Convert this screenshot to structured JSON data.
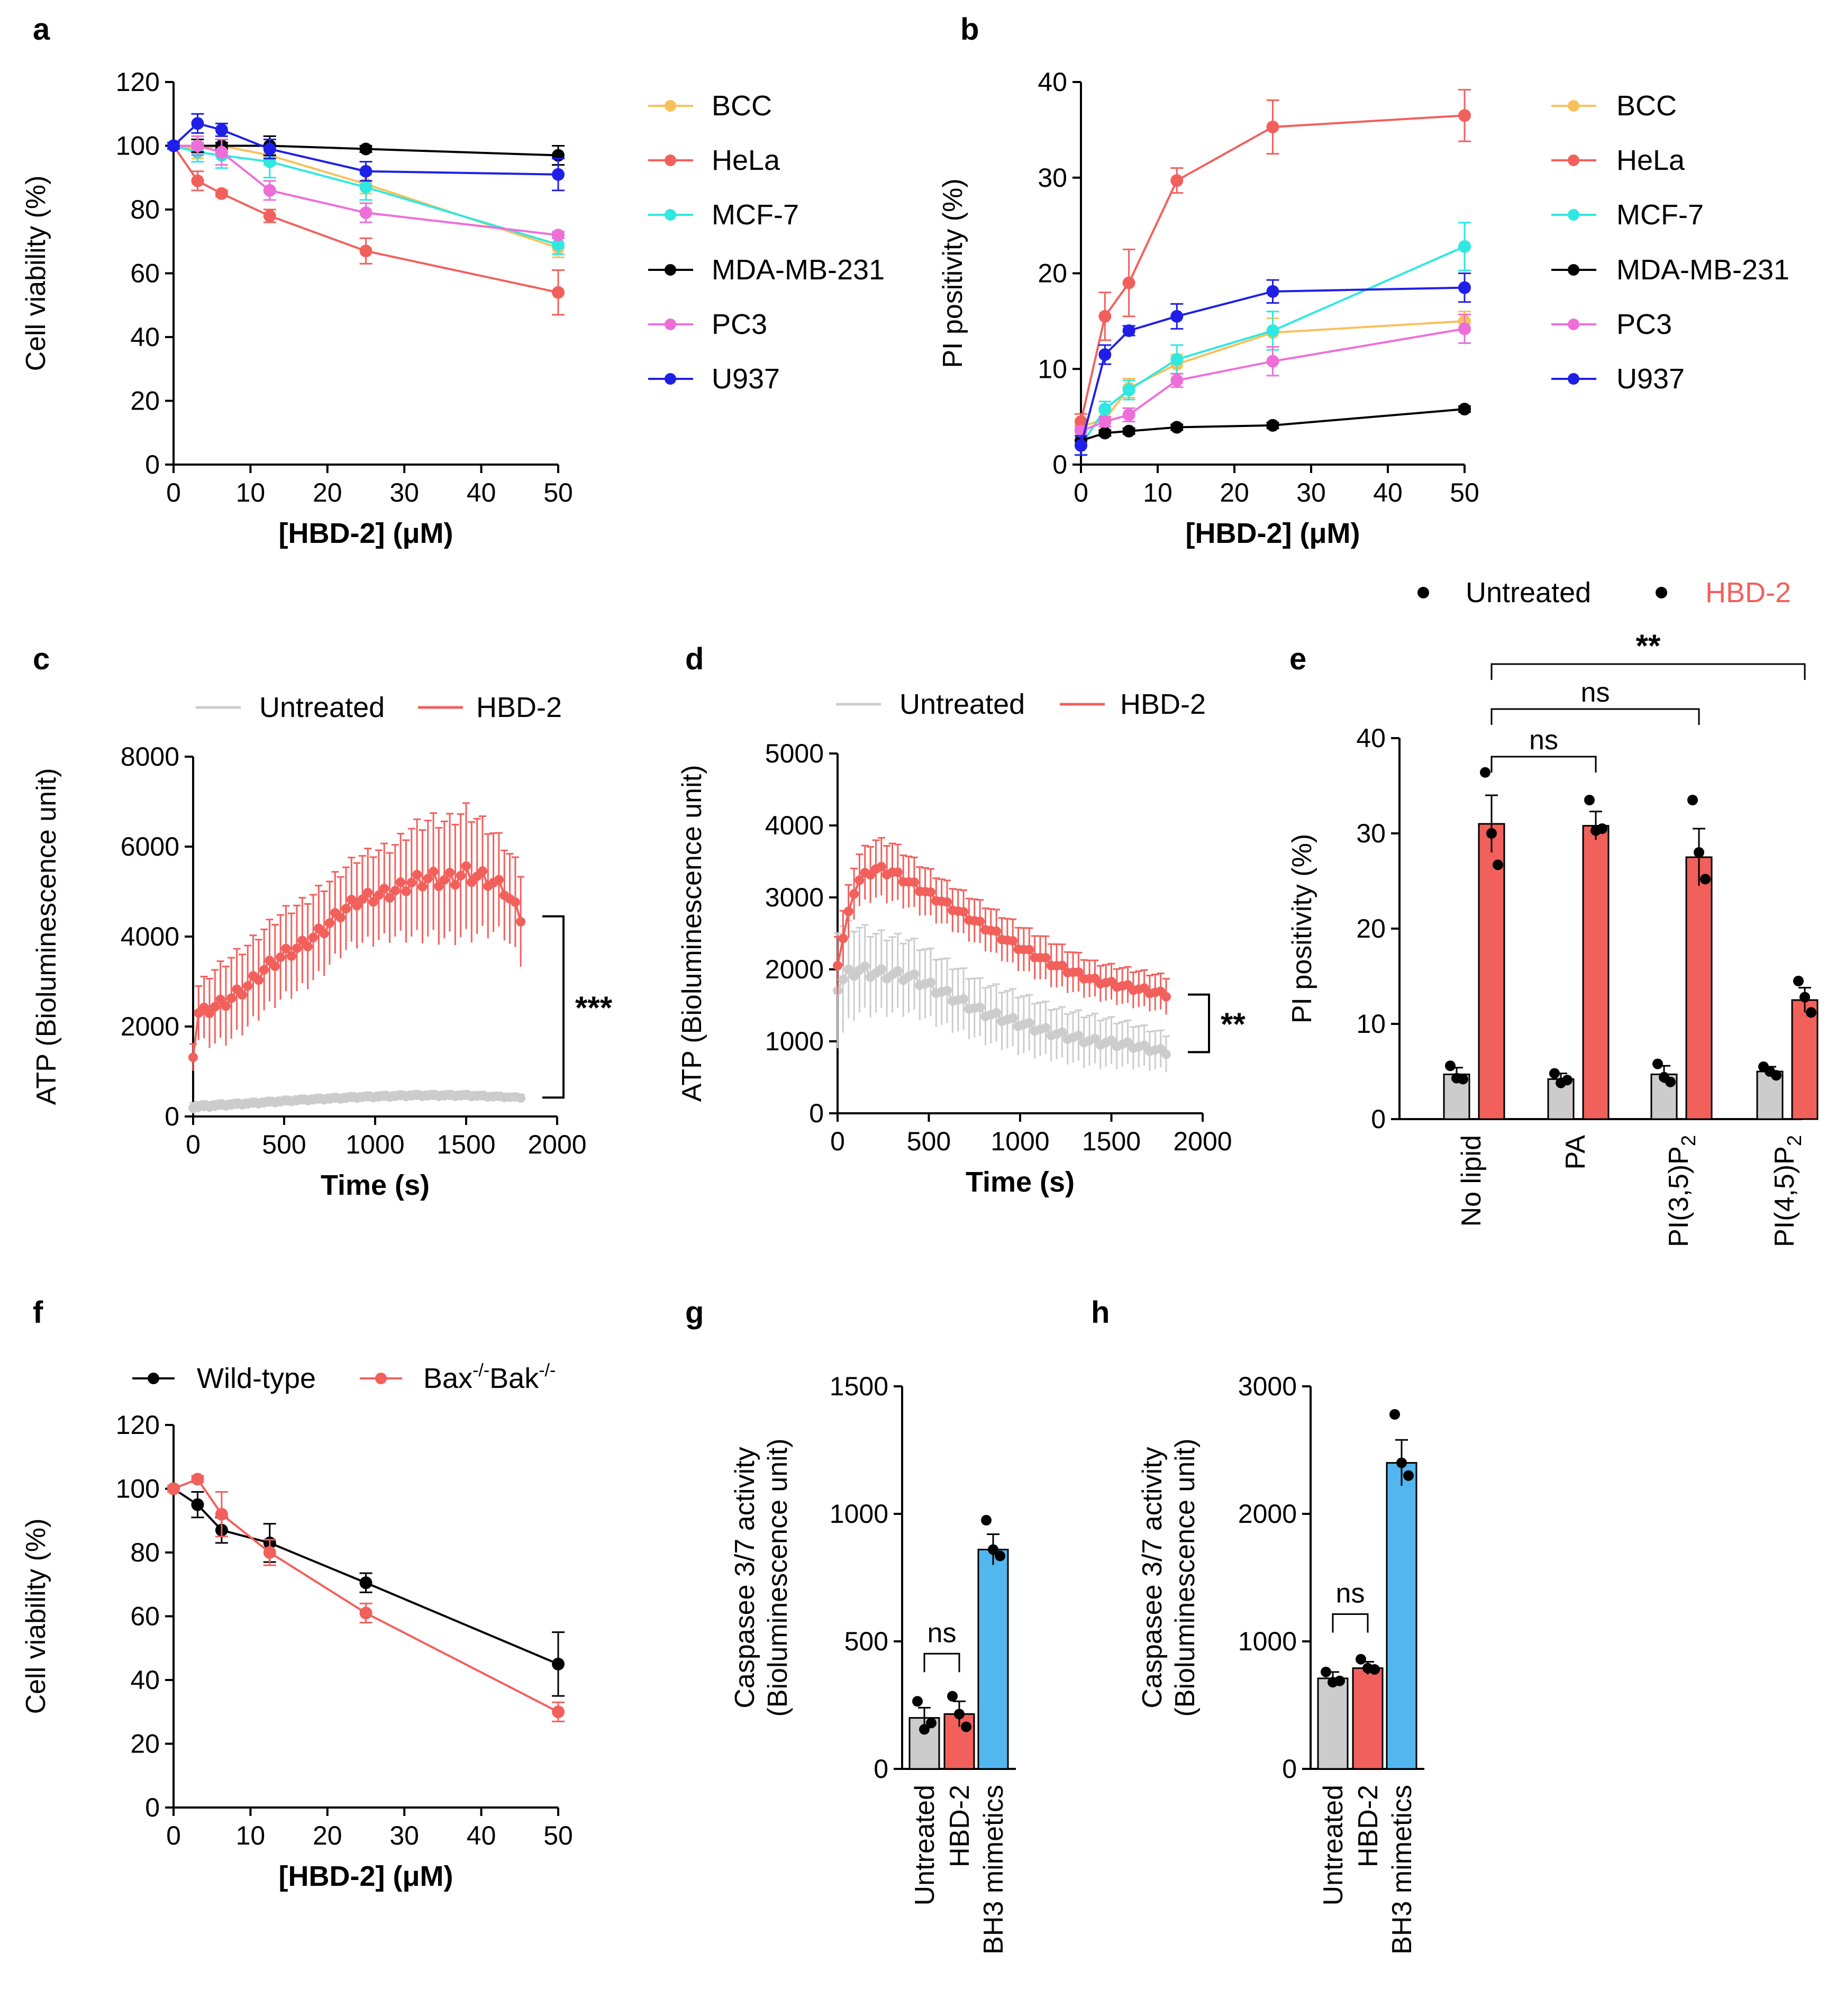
{
  "colors": {
    "BCC": "#f9c05a",
    "HeLa": "#f2605c",
    "MCF-7": "#2fe8e0",
    "MDA-MB-231": "#000000",
    "PC3": "#ee6ed8",
    "U937": "#1f1fe8",
    "untreated_grey": "#cccccc",
    "hbd_red": "#f2605c",
    "bh3_blue": "#52b7ee"
  },
  "chart_data": [
    {
      "id": "a",
      "panel_label": "a",
      "type": "line",
      "xlabel": "[HBD-2] (μM)",
      "ylabel": "Cell viability (%)",
      "xlim": [
        0,
        50
      ],
      "ylim": [
        0,
        120
      ],
      "xticks": [
        "0",
        "10",
        "20",
        "30",
        "40",
        "50"
      ],
      "yticks": [
        "0",
        "20",
        "40",
        "60",
        "80",
        "100",
        "120"
      ],
      "x": [
        0,
        3.125,
        6.25,
        12.5,
        25,
        50
      ],
      "series": [
        {
          "name": "BCC",
          "values": [
            100,
            99,
            100,
            97,
            88,
            68
          ],
          "errors": [
            1,
            3,
            2,
            3,
            3,
            3
          ]
        },
        {
          "name": "HeLa",
          "values": [
            100,
            89,
            85,
            78,
            67,
            54
          ],
          "errors": [
            1,
            3,
            1,
            2,
            4,
            7
          ]
        },
        {
          "name": "MCF-7",
          "values": [
            100,
            98,
            97,
            95,
            87,
            69
          ],
          "errors": [
            1,
            3,
            4,
            5,
            4,
            3
          ]
        },
        {
          "name": "MDA-MB-231",
          "values": [
            100,
            100,
            100,
            100,
            99,
            97
          ],
          "errors": [
            1,
            2,
            1,
            3,
            1,
            3
          ]
        },
        {
          "name": "PC3",
          "values": [
            100,
            100,
            98,
            86,
            79,
            72
          ],
          "errors": [
            1,
            3,
            4,
            3,
            3,
            1
          ]
        },
        {
          "name": "U937",
          "values": [
            100,
            107,
            105,
            99,
            92,
            91
          ],
          "errors": [
            1,
            3,
            2,
            3,
            3,
            5
          ]
        }
      ]
    },
    {
      "id": "b",
      "panel_label": "b",
      "type": "line",
      "xlabel": "[HBD-2] (μM)",
      "ylabel": "PI positivity (%)",
      "xlim": [
        0,
        50
      ],
      "ylim": [
        0,
        40
      ],
      "xticks": [
        "0",
        "10",
        "20",
        "30",
        "40",
        "50"
      ],
      "yticks": [
        "0",
        "10",
        "20",
        "30",
        "40"
      ],
      "x": [
        0,
        3.125,
        6.25,
        12.5,
        25,
        50
      ],
      "series": [
        {
          "name": "BCC",
          "values": [
            4,
            4.7,
            8,
            10.5,
            13.8,
            15
          ],
          "errors": [
            0.5,
            0.8,
            1,
            1,
            1.5,
            1
          ]
        },
        {
          "name": "HeLa",
          "values": [
            4.5,
            15.5,
            19,
            29.7,
            35.3,
            36.5
          ],
          "errors": [
            0.8,
            2.5,
            3.5,
            1.3,
            2.8,
            2.7
          ]
        },
        {
          "name": "MCF-7",
          "values": [
            2,
            5.8,
            7.8,
            11,
            14,
            22.8
          ],
          "errors": [
            1,
            0.8,
            1,
            1.5,
            2,
            2.5
          ]
        },
        {
          "name": "MDA-MB-231",
          "values": [
            2.5,
            3.3,
            3.5,
            3.9,
            4.1,
            5.8
          ],
          "errors": [
            0.5,
            0.3,
            0.3,
            0.3,
            0.3,
            0.3
          ]
        },
        {
          "name": "PC3",
          "values": [
            3.5,
            4.5,
            5.2,
            8.8,
            10.8,
            14.2
          ],
          "errors": [
            0.5,
            0.5,
            0.7,
            0.7,
            1.5,
            1.5
          ]
        },
        {
          "name": "U937",
          "values": [
            2,
            11.5,
            14,
            15.5,
            18.1,
            18.5
          ],
          "errors": [
            1,
            1,
            0.5,
            1.3,
            1.2,
            1.5
          ]
        }
      ]
    },
    {
      "id": "c",
      "panel_label": "c",
      "type": "line",
      "xlabel": "Time (s)",
      "ylabel": "ATP (Bioluminescence unit)",
      "xlim": [
        0,
        2000
      ],
      "ylim": [
        0,
        8000
      ],
      "xticks": [
        "0",
        "500",
        "1000",
        "1500",
        "2000"
      ],
      "yticks": [
        "0",
        "2000",
        "4000",
        "6000",
        "8000"
      ],
      "legend": [
        "Untreated",
        "HBD-2"
      ],
      "significance": "***",
      "red_keyframes": {
        "t": [
          0,
          30,
          100,
          200,
          300,
          400,
          500,
          600,
          700,
          800,
          900,
          1000,
          1100,
          1200,
          1300,
          1400,
          1500,
          1600,
          1700,
          1800
        ],
        "v": [
          1350,
          2300,
          2400,
          2600,
          2900,
          3300,
          3600,
          3800,
          4100,
          4500,
          4800,
          4900,
          5000,
          5200,
          5300,
          5250,
          5400,
          5300,
          5100,
          4450
        ],
        "err": [
          300,
          600,
          800,
          900,
          900,
          900,
          950,
          950,
          950,
          900,
          950,
          1000,
          1000,
          1200,
          1300,
          1300,
          1400,
          1200,
          1000,
          1000
        ]
      },
      "grey_keyframes": {
        "t": [
          0,
          300,
          600,
          900,
          1200,
          1500,
          1800
        ],
        "v": [
          200,
          280,
          360,
          420,
          460,
          460,
          420
        ],
        "err": [
          120,
          100,
          100,
          100,
          100,
          100,
          80
        ]
      }
    },
    {
      "id": "d",
      "panel_label": "d",
      "type": "line",
      "xlabel": "Time (s)",
      "ylabel": "ATP (Bioluminescence unit)",
      "xlim": [
        0,
        2000
      ],
      "ylim": [
        0,
        5000
      ],
      "xticks": [
        "0",
        "500",
        "1000",
        "1500",
        "2000"
      ],
      "yticks": [
        "0",
        "1000",
        "2000",
        "3000",
        "4000",
        "5000"
      ],
      "legend": [
        "Untreated",
        "HBD-2"
      ],
      "significance": "**",
      "red_keyframes": {
        "t": [
          0,
          100,
          200,
          300,
          400,
          600,
          800,
          1000,
          1200,
          1400,
          1600,
          1800
        ],
        "v": [
          2100,
          3200,
          3400,
          3350,
          3200,
          2900,
          2600,
          2300,
          2050,
          1850,
          1750,
          1650
        ],
        "err": [
          400,
          350,
          400,
          400,
          350,
          300,
          300,
          300,
          300,
          250,
          250,
          250
        ]
      },
      "grey_keyframes": {
        "t": [
          0,
          100,
          200,
          400,
          600,
          800,
          1000,
          1200,
          1400,
          1600,
          1800
        ],
        "v": [
          1800,
          2000,
          1950,
          1900,
          1650,
          1400,
          1250,
          1100,
          1000,
          950,
          850
        ],
        "err": [
          800,
          600,
          550,
          500,
          450,
          400,
          400,
          350,
          350,
          300,
          250
        ]
      }
    },
    {
      "id": "e",
      "panel_label": "e",
      "type": "bar",
      "ylabel": "PI positivity (%)",
      "ylim": [
        0,
        40
      ],
      "yticks": [
        "0",
        "10",
        "20",
        "30",
        "40"
      ],
      "categories": [
        "No lipid",
        "PA",
        "PI(3,5)P",
        "PI(4,5)P"
      ],
      "subscript": "2",
      "legend": [
        "Untreated",
        "HBD-2"
      ],
      "series": [
        {
          "name": "Untreated",
          "values": [
            4.7,
            4.2,
            4.7,
            5
          ],
          "errors": [
            0.7,
            0.6,
            0.9,
            0.5
          ],
          "points": [
            [
              5.6,
              4.3,
              4.2
            ],
            [
              4.8,
              3.8,
              4.1
            ],
            [
              5.8,
              4.4,
              3.9
            ],
            [
              5.5,
              5,
              4.6
            ]
          ]
        },
        {
          "name": "HBD-2",
          "values": [
            31,
            30.8,
            27.5,
            12.5
          ],
          "errors": [
            3,
            1.5,
            3,
            1.3
          ],
          "points": [
            [
              36.4,
              30,
              26.7
            ],
            [
              33.5,
              30.3,
              30.5
            ],
            [
              33.5,
              28,
              25.2
            ],
            [
              14.5,
              12.8,
              11.2
            ]
          ]
        }
      ],
      "comparisons": [
        {
          "from": "No lipid",
          "to": "PA",
          "label": "ns"
        },
        {
          "from": "No lipid",
          "to": "PI(3,5)P2",
          "label": "ns"
        },
        {
          "from": "No lipid",
          "to": "PI(4,5)P2",
          "label": "**"
        }
      ]
    },
    {
      "id": "f",
      "panel_label": "f",
      "type": "line",
      "xlabel": "[HBD-2] (μM)",
      "ylabel": "Cell viability (%)",
      "xlim": [
        0,
        50
      ],
      "ylim": [
        0,
        120
      ],
      "xticks": [
        "0",
        "10",
        "20",
        "30",
        "40",
        "50"
      ],
      "yticks": [
        "0",
        "20",
        "40",
        "60",
        "80",
        "100",
        "120"
      ],
      "x": [
        0,
        3.125,
        6.25,
        12.5,
        25,
        50
      ],
      "series": [
        {
          "name": "Wild-type",
          "values": [
            100,
            95,
            87,
            83,
            70.5,
            45
          ],
          "errors": [
            1,
            4,
            4,
            6,
            3,
            10
          ]
        },
        {
          "name": "Bax-/-Bak-/-",
          "values": [
            100,
            103,
            92,
            80,
            61,
            30
          ],
          "errors": [
            1,
            1,
            7,
            4,
            3,
            3
          ]
        }
      ]
    },
    {
      "id": "g",
      "panel_label": "g",
      "type": "bar",
      "ylabel": "Caspasee 3/7 activity",
      "ylabel2": "(Bioluminescence unit)",
      "ylim": [
        0,
        1500
      ],
      "yticks": [
        "0",
        "500",
        "1000",
        "1500"
      ],
      "categories": [
        "Untreated",
        "HBD-2",
        "BH3 mimetics"
      ],
      "values": [
        200,
        215,
        860
      ],
      "errors": [
        40,
        50,
        60
      ],
      "points": [
        [
          265,
          155,
          180
        ],
        [
          285,
          215,
          165
        ],
        [
          975,
          860,
          835
        ]
      ],
      "comparison": "ns"
    },
    {
      "id": "h",
      "panel_label": "h",
      "type": "bar",
      "ylabel": "Caspasee 3/7 activity",
      "ylabel2": "(Bioluminescence unit)",
      "ylim": [
        0,
        3000
      ],
      "yticks": [
        "0",
        "1000",
        "2000",
        "3000"
      ],
      "categories": [
        "Untreated",
        "HBD-2",
        "BH3 mimetics"
      ],
      "values": [
        710,
        790,
        2400
      ],
      "errors": [
        50,
        50,
        180
      ],
      "points": [
        [
          760,
          680,
          690
        ],
        [
          860,
          790,
          780
        ],
        [
          2780,
          2400,
          2300
        ]
      ],
      "comparison": "ns"
    }
  ]
}
